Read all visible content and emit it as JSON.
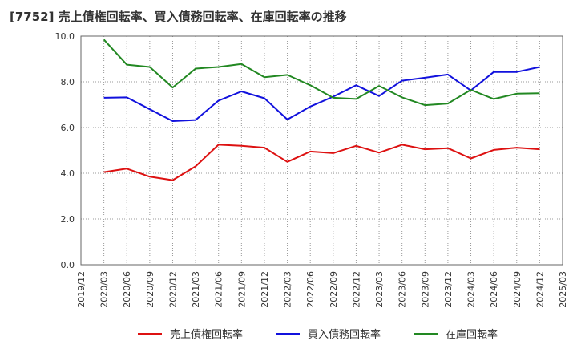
{
  "chart_data": {
    "type": "line",
    "title": "[7752]  売上債権回転率、買入債務回転率、在庫回転率の推移",
    "xlabel": "",
    "ylabel": "",
    "ylim": [
      0,
      10
    ],
    "y_ticks": [
      "0.0",
      "2.0",
      "4.0",
      "6.0",
      "8.0",
      "10.0"
    ],
    "x_tick_labels": [
      "2019/12",
      "2020/03",
      "2020/06",
      "2020/09",
      "2020/12",
      "2021/03",
      "2021/06",
      "2021/09",
      "2021/12",
      "2022/03",
      "2022/06",
      "2022/09",
      "2022/12",
      "2023/03",
      "2023/06",
      "2023/09",
      "2023/12",
      "2024/03",
      "2024/06",
      "2024/09",
      "2024/12",
      "2025/03"
    ],
    "categories": [
      "2020/03",
      "2020/06",
      "2020/09",
      "2020/12",
      "2021/03",
      "2021/06",
      "2021/09",
      "2021/12",
      "2022/03",
      "2022/06",
      "2022/09",
      "2022/12",
      "2023/03",
      "2023/06",
      "2023/09",
      "2023/12",
      "2024/03",
      "2024/06",
      "2024/09",
      "2024/12"
    ],
    "grid": true,
    "legend_position": "bottom",
    "series": [
      {
        "name": "売上債権回転率",
        "color": "#dd1111",
        "values": [
          4.05,
          4.2,
          3.85,
          3.7,
          4.3,
          5.25,
          5.2,
          5.12,
          4.5,
          4.95,
          4.88,
          5.2,
          4.9,
          5.25,
          5.05,
          5.1,
          4.65,
          5.02,
          5.12,
          5.05
        ]
      },
      {
        "name": "買入債務回転率",
        "color": "#1111dd",
        "values": [
          7.3,
          7.32,
          6.8,
          6.28,
          6.33,
          7.18,
          7.58,
          7.28,
          6.35,
          6.92,
          7.35,
          7.85,
          7.38,
          8.05,
          8.18,
          8.32,
          7.62,
          8.43,
          8.43,
          8.65
        ]
      },
      {
        "name": "在庫回転率",
        "color": "#228822",
        "values": [
          9.85,
          8.75,
          8.65,
          7.75,
          8.58,
          8.65,
          8.78,
          8.2,
          8.3,
          7.85,
          7.3,
          7.25,
          7.82,
          7.32,
          6.98,
          7.05,
          7.65,
          7.25,
          7.48,
          7.5
        ]
      }
    ]
  }
}
